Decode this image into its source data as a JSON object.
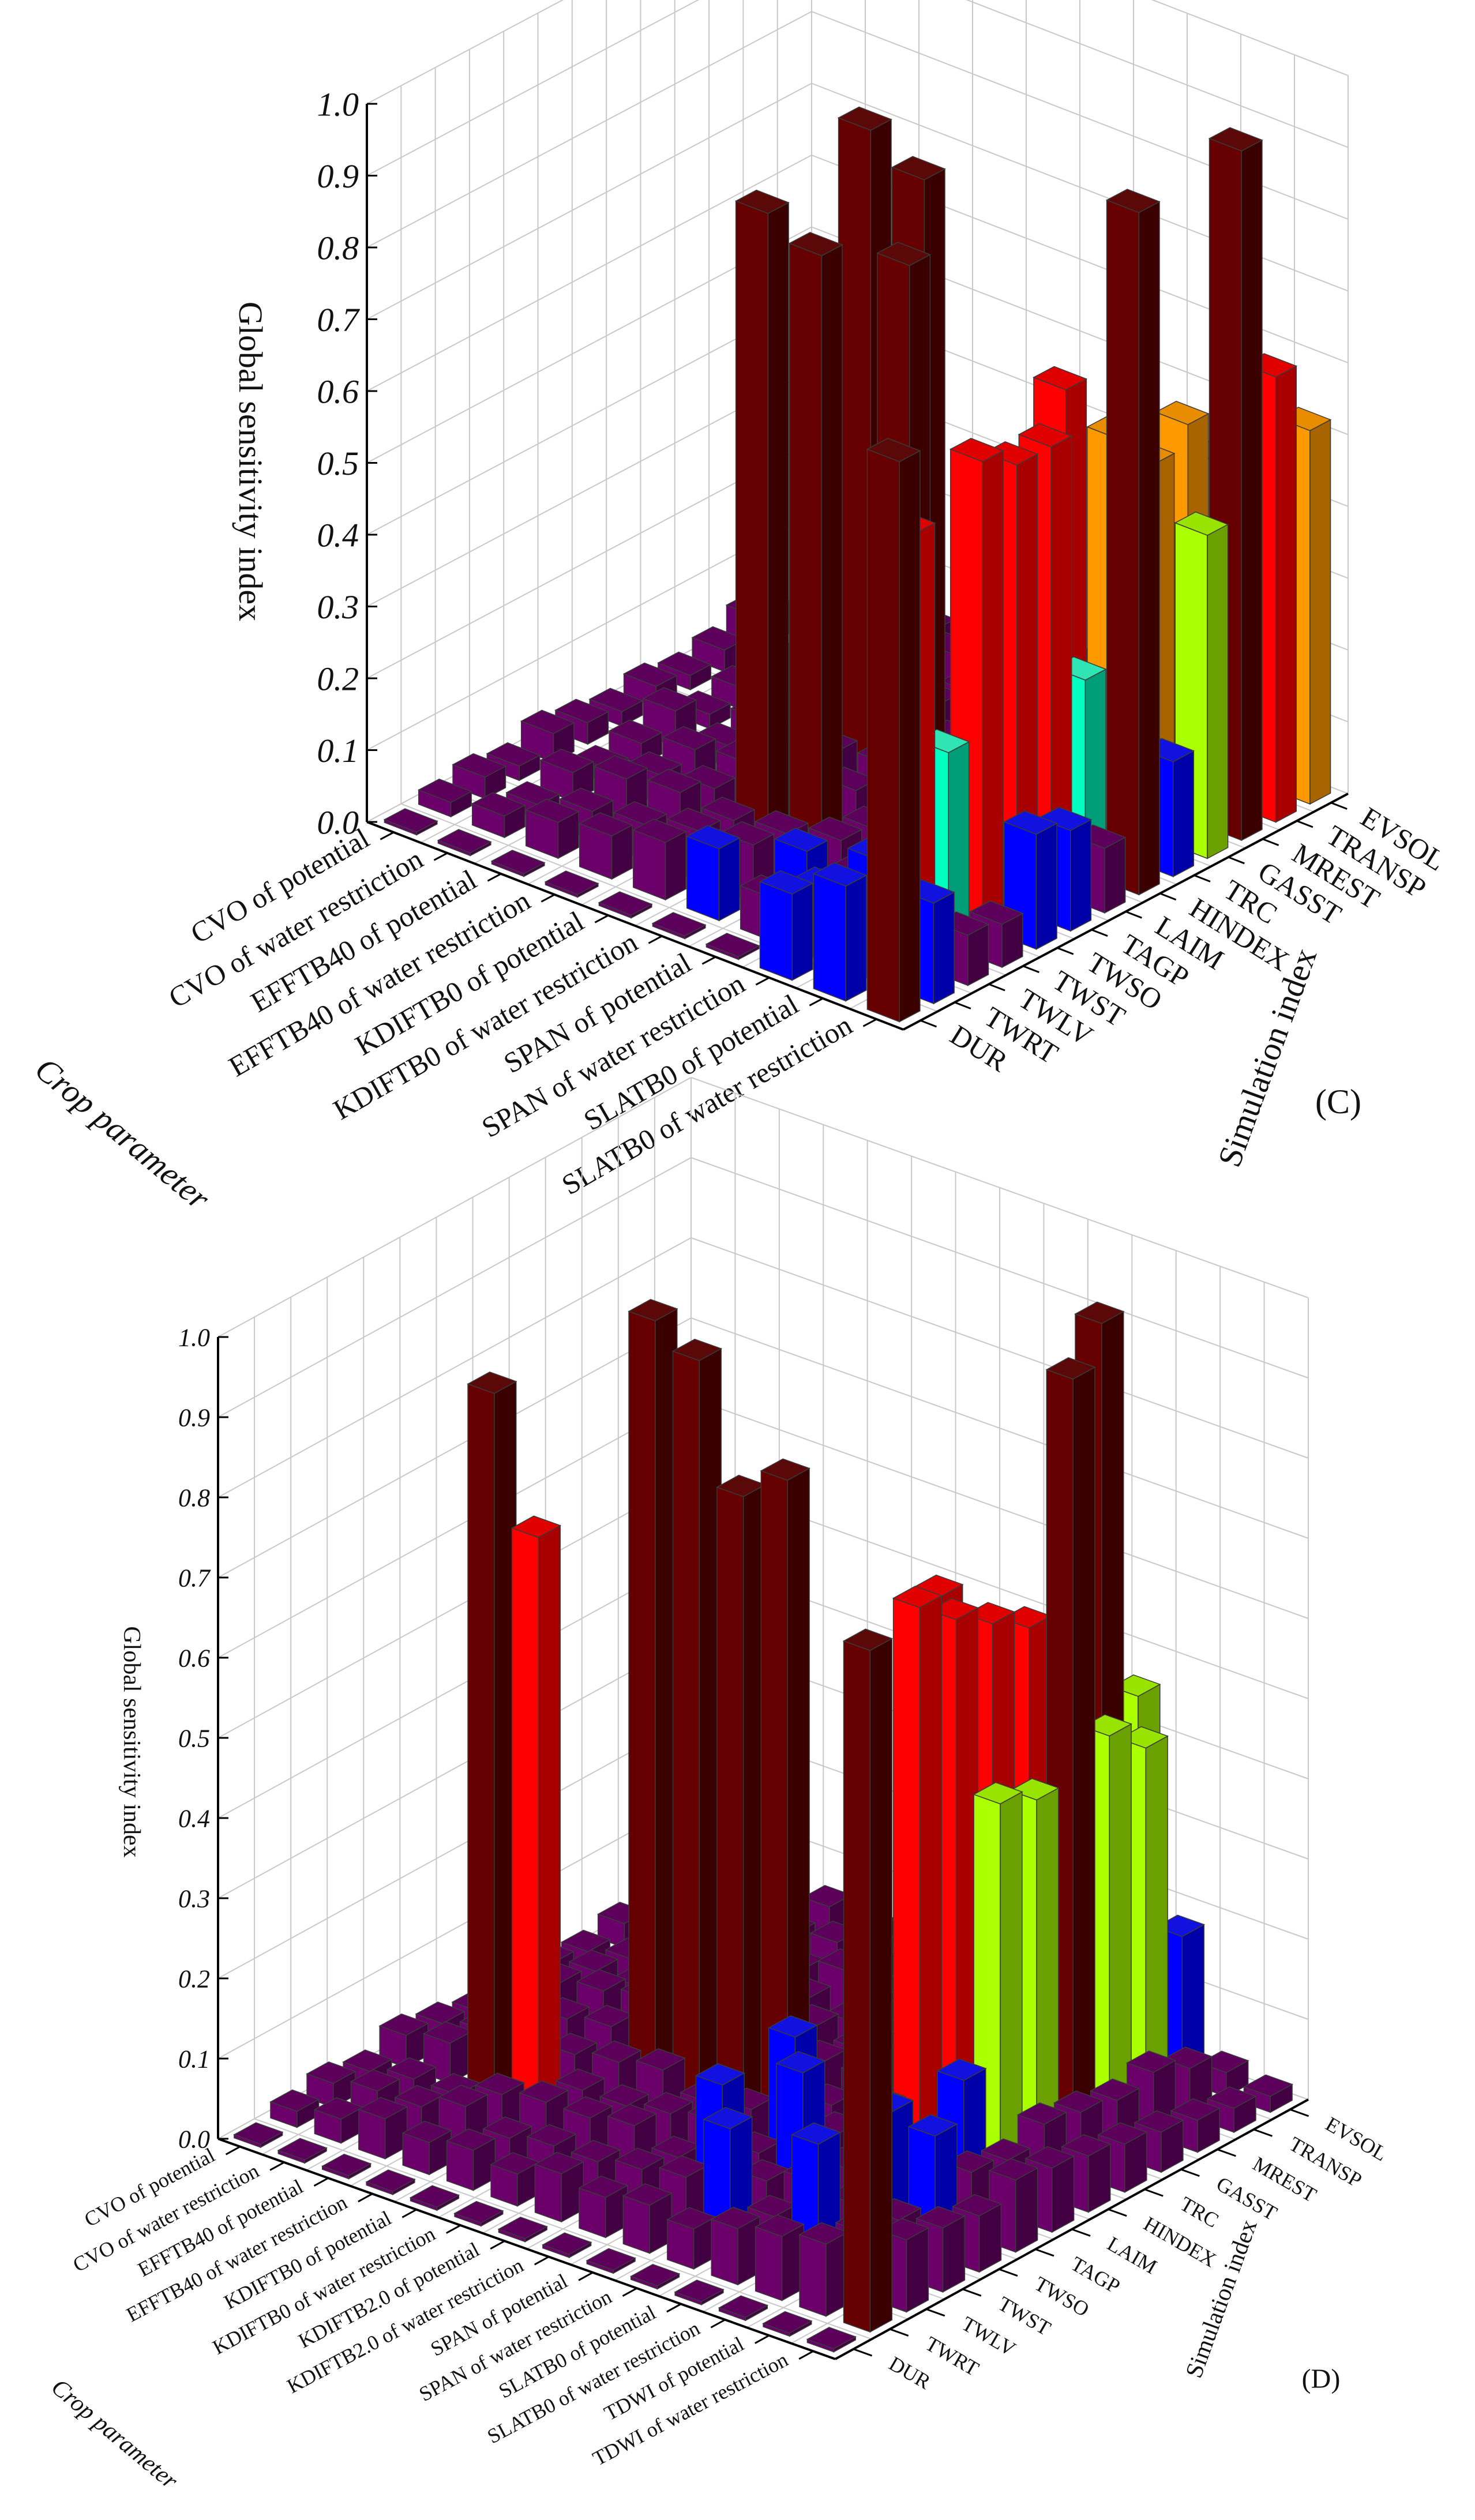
{
  "colormap": [
    {
      "min": 0.0,
      "max": 0.1,
      "color": "#6b006b"
    },
    {
      "min": 0.1,
      "max": 0.2,
      "color": "#0000ff"
    },
    {
      "min": 0.2,
      "max": 0.3,
      "color": "#00ffc0"
    },
    {
      "min": 0.3,
      "max": 0.5,
      "color": "#aaff00"
    },
    {
      "min": 0.5,
      "max": 0.6,
      "color": "#ff9900"
    },
    {
      "min": 0.6,
      "max": 0.75,
      "color": "#ff0000"
    },
    {
      "min": 0.75,
      "max": 1.0,
      "color": "#660000"
    }
  ],
  "chart_data": [
    {
      "type": "bar3d",
      "panel_label": "(C)",
      "zlabel": "Global sensitivity index",
      "xlabel": "Crop parameter",
      "ylabel": "Simulation index",
      "zlim": [
        0,
        1
      ],
      "zticks": [
        "0.0",
        "0.1",
        "0.2",
        "0.3",
        "0.4",
        "0.5",
        "0.6",
        "0.7",
        "0.8",
        "0.9",
        "1.0"
      ],
      "grid": true,
      "crop_parameters": [
        "CVO of potential",
        "CVO of water restriction",
        "EFFTB40 of potential",
        "EFFTB40 of water restriction",
        "KDIFTB0 of potential",
        "KDIFTB0 of water restriction",
        "SPAN of potential",
        "SPAN of water restriction",
        "SLATB0 of potential",
        "SLATB0 of water restriction"
      ],
      "simulation_indices": [
        "DUR",
        "TWRT",
        "TWLV",
        "TWST",
        "TWSO",
        "TAGP",
        "LAIM",
        "HINDEX",
        "TRC",
        "GASST",
        "MREST",
        "TRANSP",
        "EVSOL"
      ],
      "values": [
        [
          0,
          0.02,
          0.03,
          0.02,
          0.04,
          0.03,
          0.02,
          0.03,
          0.02,
          0.03,
          0.05,
          0.02,
          0.04
        ],
        [
          0,
          0.03,
          0.02,
          0.04,
          0.02,
          0.03,
          0.05,
          0.02,
          0.03,
          0.04,
          0.02,
          0.03,
          0.02
        ],
        [
          0,
          0.05,
          0.04,
          0.06,
          0.04,
          0.05,
          0.03,
          0.04,
          0.05,
          0.06,
          0.24,
          0.05,
          0.04
        ],
        [
          0,
          0.06,
          0.05,
          0.07,
          0.05,
          0.06,
          0.04,
          0.05,
          0.06,
          0.07,
          0.31,
          0.06,
          0.05
        ],
        [
          0,
          0.08,
          0.07,
          0.06,
          0.88,
          0.07,
          0.08,
          0.92,
          0.06,
          0.07,
          0.06,
          0.05,
          0.06
        ],
        [
          0,
          0.1,
          0.08,
          0.07,
          0.85,
          0.08,
          0.09,
          0.88,
          0.07,
          0.08,
          0.07,
          0.06,
          0.07
        ],
        [
          0,
          0.06,
          0.1,
          0.09,
          0.08,
          0.84,
          0.09,
          0.1,
          0.08,
          0.09,
          0.08,
          0.07,
          0.08
        ],
        [
          0.12,
          0.1,
          0.09,
          0.08,
          0.09,
          0.1,
          0.09,
          0.08,
          0.62,
          0.07,
          0.08,
          0.07,
          0.09
        ],
        [
          0.16,
          0.17,
          0.6,
          0.27,
          0.65,
          0.62,
          0.62,
          0.27,
          0.58,
          0.52,
          0.55,
          0.47,
          0.18
        ],
        [
          0.78,
          0.14,
          0.07,
          0.06,
          0.16,
          0.14,
          0.09,
          0.95,
          0.16,
          0.45,
          0.96,
          0.62,
          0.52
        ]
      ]
    },
    {
      "type": "bar3d",
      "panel_label": "(D)",
      "zlabel": "Global sensitivity index",
      "xlabel": "Crop parameter",
      "ylabel": "Simulation index",
      "zlim": [
        0,
        1
      ],
      "zticks": [
        "0.0",
        "0.1",
        "0.2",
        "0.3",
        "0.4",
        "0.5",
        "0.6",
        "0.7",
        "0.8",
        "0.9",
        "1.0"
      ],
      "grid": true,
      "crop_parameters": [
        "CVO of potential",
        "CVO of water restriction",
        "EFFTB40 of potential",
        "EFFTB40 of water restriction",
        "KDIFTB0 of potential",
        "KDIFTB0 of water restriction",
        "KDIFTB2.0 of potential",
        "KDIFTB2.0 of water restriction",
        "SPAN of potential",
        "SPAN of water restriction",
        "SLATB0 of potential",
        "SLATB0 of water restriction",
        "TDWI of potential",
        "TDWI of water restriction"
      ],
      "simulation_indices": [
        "DUR",
        "TWRT",
        "TWLV",
        "TWST",
        "TWSO",
        "TAGP",
        "LAIM",
        "HINDEX",
        "TRC",
        "GASST",
        "MREST",
        "TRANSP",
        "EVSOL"
      ],
      "values": [
        [
          0,
          0.02,
          0.03,
          0.02,
          0.04,
          0.03,
          0.02,
          0.04,
          0.03,
          0.02,
          0.03,
          0.02,
          0.03
        ],
        [
          0,
          0.03,
          0.04,
          0.03,
          0.05,
          0.04,
          0.03,
          0.05,
          0.04,
          0.03,
          0.04,
          0.03,
          0.04
        ],
        [
          0,
          0.05,
          0.04,
          0.03,
          0.88,
          0.04,
          0.05,
          0.06,
          0.04,
          0.05,
          0.04,
          0.05,
          0.04
        ],
        [
          0,
          0.04,
          0.06,
          0.05,
          0.72,
          0.05,
          0.06,
          0.07,
          0.05,
          0.06,
          0.18,
          0.05,
          0.06
        ],
        [
          0,
          0.05,
          0.04,
          0.06,
          0.05,
          0.06,
          0.96,
          0.05,
          0.06,
          0.07,
          0.05,
          0.06,
          0.05
        ],
        [
          0,
          0.04,
          0.05,
          0.06,
          0.05,
          0.07,
          0.93,
          0.06,
          0.05,
          0.06,
          0.07,
          0.06,
          0.05
        ],
        [
          0,
          0.06,
          0.05,
          0.07,
          0.06,
          0.05,
          0.78,
          0.06,
          0.07,
          0.05,
          0.06,
          0.07,
          0.06
        ],
        [
          0,
          0.05,
          0.06,
          0.05,
          0.07,
          0.06,
          0.82,
          0.07,
          0.06,
          0.07,
          0.06,
          0.05,
          0.06
        ],
        [
          0,
          0.06,
          0.07,
          0.16,
          0.05,
          0.17,
          0.06,
          0.07,
          0.08,
          0.62,
          0.07,
          0.06,
          0.08
        ],
        [
          0,
          0.05,
          0.15,
          0.06,
          0.17,
          0.07,
          0.08,
          0.06,
          0.07,
          0.09,
          0.08,
          0.07,
          0.06
        ],
        [
          0,
          0.07,
          0.06,
          0.08,
          0.07,
          0.12,
          0.72,
          0.68,
          0.65,
          0.62,
          0.48,
          0.95,
          0.46
        ],
        [
          0,
          0.08,
          0.17,
          0.07,
          0.16,
          0.07,
          0.15,
          0.47,
          0.45,
          0.95,
          0.48,
          0.44,
          0.18
        ],
        [
          0,
          0.09,
          0.08,
          0.07,
          0.15,
          0.08,
          0.07,
          0.09,
          0.08,
          0.07,
          0.08,
          0.06,
          0.03
        ],
        [
          0,
          0.85,
          0.09,
          0.08,
          0.07,
          0.09,
          0.08,
          0.07,
          0.06,
          0.05,
          0.04,
          0.03,
          0.02
        ]
      ]
    }
  ]
}
